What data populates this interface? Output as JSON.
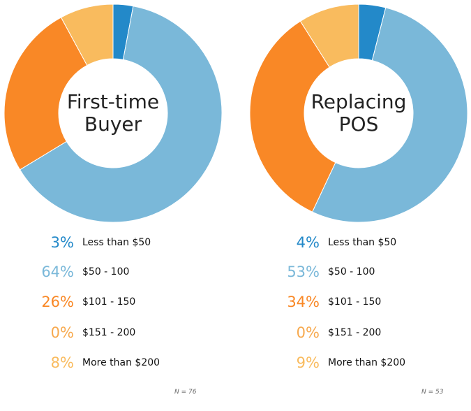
{
  "colors": {
    "less_than_50": "#2389c9",
    "50_100": "#7ab8d9",
    "101_150": "#f98826",
    "151_200": "#f7a94e",
    "more_than_200": "#f9bb5e"
  },
  "chart_data": [
    {
      "type": "pie",
      "title": "First-time Buyer",
      "categories": [
        "Less than $50",
        "$50 - 100",
        "$101 - 150",
        "$151 - 200",
        "More than $200"
      ],
      "values": [
        3,
        64,
        26,
        0,
        8
      ],
      "value_labels": [
        "3%",
        "64%",
        "26%",
        "0%",
        "8%"
      ],
      "donut": true,
      "note": "N = 76"
    },
    {
      "type": "pie",
      "title": "Replacing POS",
      "categories": [
        "Less than $50",
        "$50 - 100",
        "$101 - 150",
        "$151 - 200",
        "More than $200"
      ],
      "values": [
        4,
        53,
        34,
        0,
        9
      ],
      "value_labels": [
        "4%",
        "53%",
        "34%",
        "0%",
        "9%"
      ],
      "donut": true,
      "note": "N = 53"
    }
  ]
}
